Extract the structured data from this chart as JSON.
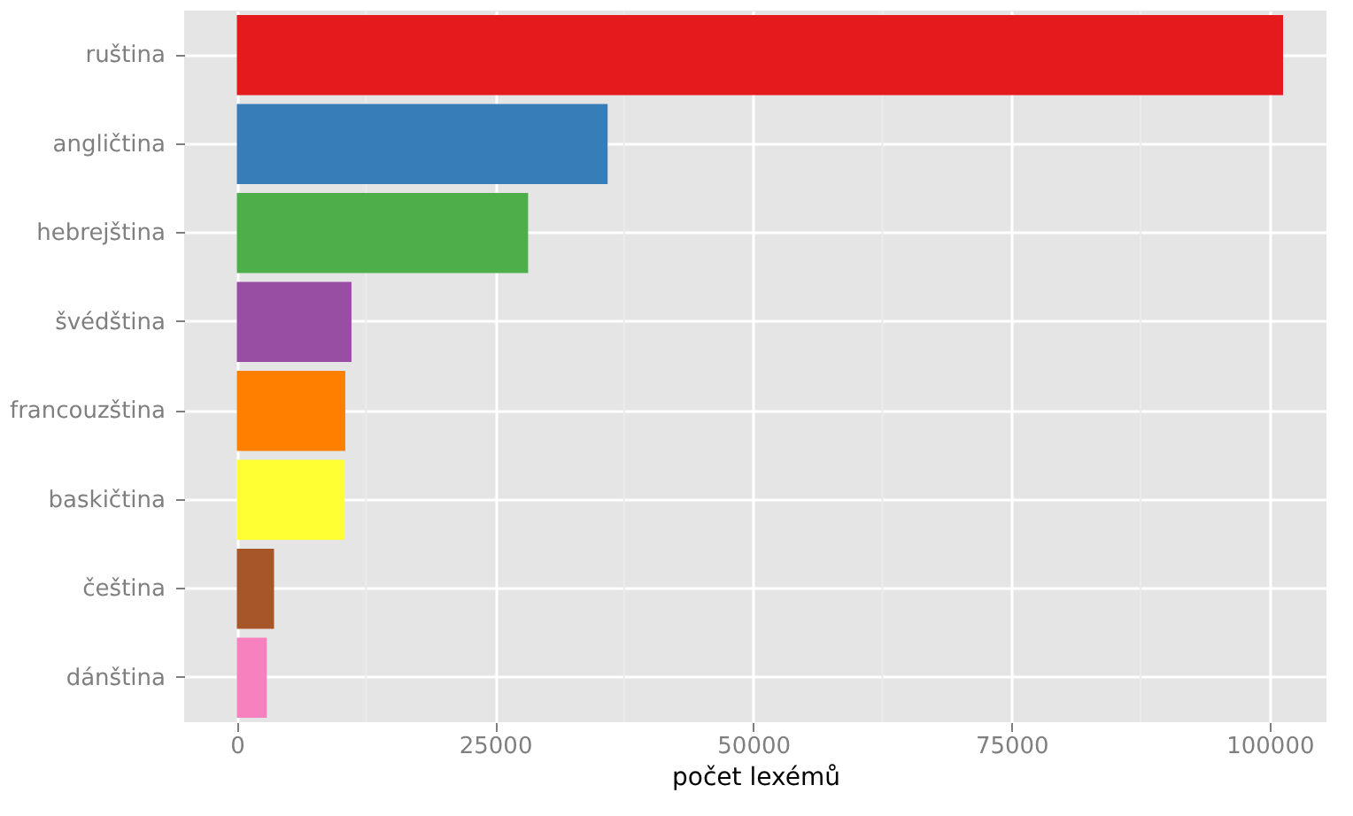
{
  "chart_data": {
    "type": "bar",
    "orientation": "horizontal",
    "xlabel": "počet lexémů",
    "categories": [
      "ruština",
      "angličtina",
      "hebrejština",
      "švédština",
      "francouzština",
      "baskičtina",
      "čeština",
      "dánština"
    ],
    "values": [
      101300,
      35900,
      28200,
      11100,
      10500,
      10400,
      3600,
      2900
    ],
    "colors": [
      "#e41a1c",
      "#377eb8",
      "#4daf4a",
      "#984ea3",
      "#ff7f00",
      "#ffff33",
      "#a65628",
      "#f781bf"
    ],
    "xlim": [
      -5100,
      105500
    ],
    "xticks": [
      0,
      25000,
      50000,
      75000,
      100000
    ],
    "grid": true,
    "legend": false
  }
}
